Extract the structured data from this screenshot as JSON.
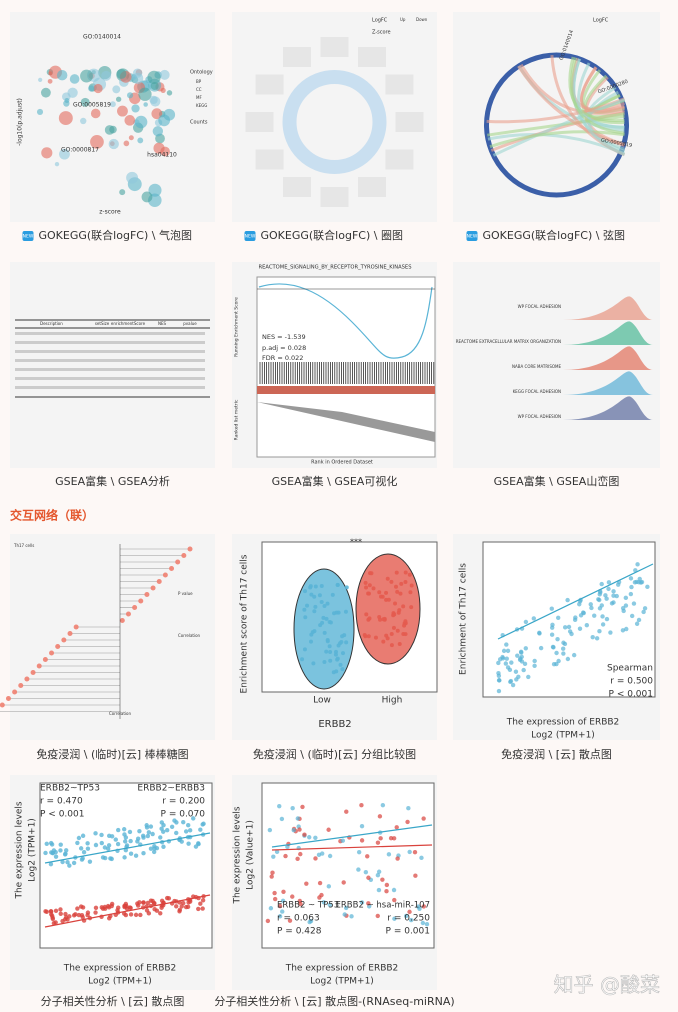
{
  "tiles": [
    {
      "badge": "NEW",
      "caption": "GOKEGG(联合logFC) \\ 气泡图",
      "texts": [
        "GO:0140014",
        "GO:0005819",
        "GO:0000817",
        "hsa04110",
        "z-score",
        "-log10(p.adjust)",
        "Ontology",
        "BP",
        "CC",
        "MF",
        "KEGG",
        "Counts"
      ]
    },
    {
      "badge": "NEW",
      "caption": "GOKEGG(联合logFC) \\ 圈图",
      "texts": [
        "LogFC",
        "Up",
        "Down",
        "Z-score"
      ]
    },
    {
      "badge": "NEW",
      "caption": "GOKEGG(联合logFC) \\ 弦图",
      "texts": [
        "LogFC",
        "GO:0140014",
        "GO:0000280",
        "GO:0005819"
      ]
    },
    {
      "caption": "GSEA富集 \\ GSEA分析",
      "texts": [
        "Description",
        "setSize",
        "enrichmentScore",
        "NES",
        "pvalue"
      ]
    },
    {
      "caption": "GSEA富集 \\ GSEA可视化",
      "texts": [
        "REACTOME_SIGNALING_BY_RECEPTOR_TYROSINE_KINASES",
        "NES = -1.539",
        "p.adj = 0.028",
        "FDR = 0.022",
        "Running Enrichment Score",
        "Ranked list metric",
        "Rank in Ordered Dataset"
      ]
    },
    {
      "caption": "GSEA富集 \\ GSEA山峦图",
      "texts": [
        "WP FOCAL ADHESION",
        "REACTOME EXTRACELLULAR MATRIX ORGANIZATION",
        "NABA CORE MATRISOME",
        "KEGG FOCAL ADHESION",
        "WP FOCAL ADHESION"
      ]
    },
    {
      "caption": "免疫浸润 \\ (临时)[云] 棒棒糖图",
      "texts": [
        "Th17 cells",
        "Correlation",
        "P value",
        "Correlation"
      ]
    },
    {
      "caption": "免疫浸润 \\ (临时)[云] 分组比较图",
      "texts": [
        "Enrichment score of Th17 cells",
        "ERBB2",
        "Low",
        "High",
        "***"
      ]
    },
    {
      "caption": "免疫浸润 \\ [云] 散点图",
      "texts": [
        "Enrichment of Th17 cells",
        "The expression of ERBB2",
        "Log2 (TPM+1)",
        "Spearman",
        "r = 0.500",
        "P < 0.001"
      ]
    },
    {
      "caption": "分子相关性分析 \\ [云] 散点图",
      "texts": [
        "The expression levels",
        "Log2 (TPM+1)",
        "ERBB2~TP53",
        "r = 0.470",
        "P < 0.001",
        "ERBB2~ERBB3",
        "r = 0.200",
        "P = 0.070",
        "The expression of ERBB2",
        "Log2 (TPM+1)"
      ]
    },
    {
      "caption": "分子相关性分析 \\ [云] 散点图-(RNAseq-miRNA)",
      "texts": [
        "The expression levels",
        "Log2 (Value+1)",
        "ERBB2 ~ TP53",
        "r = 0.063",
        "P = 0.428",
        "ERBB2 ~ hsa-miR-107",
        "r = 0.250",
        "P = 0.001",
        "The expression of ERBB2",
        "Log2 (TPM+1)"
      ]
    }
  ],
  "section_title": "交互网络（联）",
  "watermark": "知乎 @酸菜"
}
